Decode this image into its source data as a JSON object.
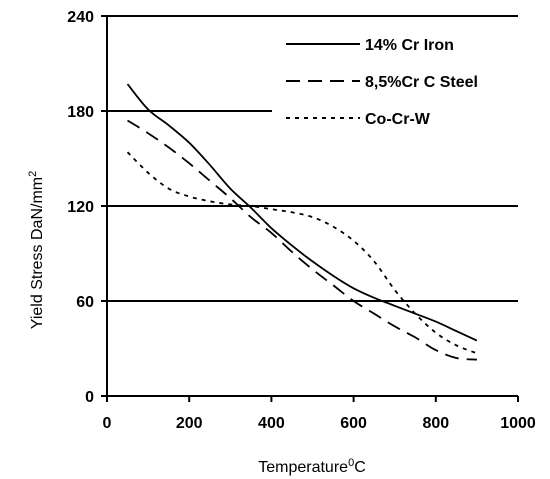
{
  "chart_data": {
    "type": "line",
    "xlabel": "Temperature",
    "xlabel_sup": "0",
    "xlabel_suffix": "C",
    "ylabel": "Yield Stress DaN/mm",
    "ylabel_sup": "2",
    "xlim": [
      0,
      1000
    ],
    "ylim": [
      0,
      240
    ],
    "xticks": [
      0,
      200,
      400,
      600,
      800,
      1000
    ],
    "yticks": [
      0,
      60,
      120,
      180,
      240
    ],
    "grid": "horizontal",
    "legend_position": "top-right",
    "series": [
      {
        "name": "14% Cr Iron",
        "style": "solid",
        "x": [
          50,
          100,
          150,
          200,
          250,
          300,
          350,
          400,
          450,
          500,
          550,
          600,
          650,
          700,
          750,
          800,
          850,
          900
        ],
        "y": [
          197,
          181,
          171,
          160,
          146,
          131,
          119,
          106,
          95,
          85,
          76,
          68,
          62,
          57,
          52,
          47,
          41,
          35
        ]
      },
      {
        "name": "8,5%Cr C Steel",
        "style": "dashed",
        "x": [
          50,
          100,
          150,
          200,
          250,
          300,
          350,
          400,
          450,
          500,
          550,
          600,
          650,
          700,
          750,
          800,
          850,
          900
        ],
        "y": [
          174,
          166,
          157,
          147,
          136,
          125,
          113,
          103,
          91,
          80,
          70,
          60,
          52,
          44,
          37,
          29,
          24,
          23
        ]
      },
      {
        "name": "Co-Cr-W",
        "style": "dotted",
        "x": [
          50,
          100,
          150,
          200,
          250,
          300,
          350,
          400,
          450,
          500,
          550,
          600,
          650,
          700,
          750,
          800,
          850,
          900
        ],
        "y": [
          154,
          141,
          131,
          126,
          123,
          121,
          120,
          118,
          116,
          113,
          107,
          98,
          85,
          67,
          52,
          40,
          32,
          27
        ]
      }
    ]
  }
}
